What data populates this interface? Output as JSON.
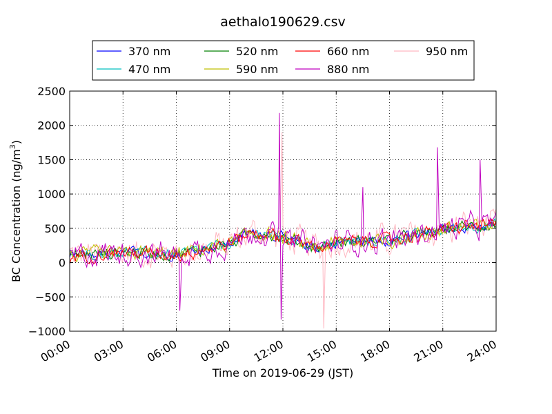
{
  "chart_data": {
    "type": "line",
    "title": "aethalo190629.csv",
    "xlabel": "Time on 2019-06-29 (JST)",
    "ylabel": "BC Concentration (ng/m",
    "ylabel_sup": "3",
    "ylabel_close": ")",
    "xlim_hours": [
      0,
      24
    ],
    "ylim": [
      -1000,
      2500
    ],
    "x_tick_hours": [
      0,
      3,
      6,
      9,
      12,
      15,
      18,
      21,
      24
    ],
    "x_tick_labels": [
      "00:00",
      "03:00",
      "06:00",
      "09:00",
      "12:00",
      "15:00",
      "18:00",
      "21:00",
      "24:00"
    ],
    "y_ticks": [
      -1000,
      -500,
      0,
      500,
      1000,
      1500,
      2000,
      2500
    ],
    "y_tick_labels": [
      "−1000",
      "−500",
      "0",
      "500",
      "1000",
      "1500",
      "2000",
      "2500"
    ],
    "grid": true,
    "legend_position": "top",
    "series": [
      {
        "name": "370 nm",
        "color": "#0000ff"
      },
      {
        "name": "470 nm",
        "color": "#00bfbf"
      },
      {
        "name": "520 nm",
        "color": "#008000"
      },
      {
        "name": "590 nm",
        "color": "#bfbf00"
      },
      {
        "name": "660 nm",
        "color": "#ff0000"
      },
      {
        "name": "880 nm",
        "color": "#bf00bf"
      },
      {
        "name": "950 nm",
        "color": "#ffb6c1"
      }
    ],
    "trend": {
      "hours": [
        0,
        3,
        6,
        9,
        10,
        11,
        12,
        13,
        14,
        15,
        18,
        20,
        21,
        22,
        24
      ],
      "level": [
        100,
        150,
        120,
        280,
        430,
        430,
        350,
        280,
        220,
        300,
        330,
        420,
        480,
        520,
        550
      ]
    },
    "spikes": [
      {
        "hour": 11.8,
        "value": 2180,
        "series": "880 nm"
      },
      {
        "hour": 20.7,
        "value": 1680,
        "series": "880 nm"
      },
      {
        "hour": 11.95,
        "value": 1900,
        "series": "950 nm"
      },
      {
        "hour": 23.1,
        "value": 1500,
        "series": "880 nm"
      },
      {
        "hour": 11.9,
        "value": -830,
        "series": "880 nm"
      },
      {
        "hour": 14.3,
        "value": -960,
        "series": "950 nm"
      },
      {
        "hour": 6.2,
        "value": -700,
        "series": "880 nm"
      },
      {
        "hour": 16.5,
        "value": 1100,
        "series": "880 nm"
      }
    ]
  }
}
